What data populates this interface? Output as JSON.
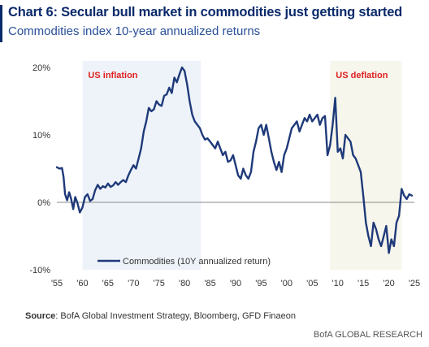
{
  "header": {
    "title": "Chart 6: Secular bull market in commodities just getting started",
    "subtitle": "Commodities index 10-year annualized returns"
  },
  "source": {
    "label": "Source",
    "text": ": BofA Global Investment Strategy, Bloomberg, GFD Finaeon"
  },
  "footer": {
    "text": "BofA GLOBAL RESEARCH"
  },
  "colors": {
    "line": "#1f3a7a",
    "shade_inflation": "#eef3fa",
    "shade_deflation": "#f6f6ec",
    "annotation": "#e02020",
    "title": "#0b2a6b",
    "zero_line": "#888888"
  },
  "chart_data": {
    "type": "line",
    "title": "",
    "xlabel": "",
    "ylabel": "",
    "xlim": [
      1955,
      2025
    ],
    "ylim": [
      -10,
      20
    ],
    "x_ticks": [
      1955,
      1960,
      1965,
      1970,
      1975,
      1980,
      1985,
      1990,
      1995,
      2000,
      2005,
      2010,
      2015,
      2020,
      2025
    ],
    "x_tick_labels": [
      "'55",
      "'60",
      "'65",
      "'70",
      "'75",
      "'80",
      "'85",
      "'90",
      "'95",
      "'00",
      "'05",
      "'10",
      "'15",
      "'20",
      "'25"
    ],
    "y_ticks": [
      -10,
      0,
      10,
      20
    ],
    "y_tick_labels": [
      "-10%",
      "0%",
      "10%",
      "20%"
    ],
    "grid": false,
    "legend_position": "bottom-left",
    "shaded_regions": [
      {
        "label": "US inflation",
        "start": 1960,
        "end": 1983.2
      },
      {
        "label": "US deflation",
        "start": 2008.5,
        "end": 2022.5
      }
    ],
    "series": [
      {
        "name": "Commodities (10Y annualized return)",
        "x": [
          1955,
          1955.5,
          1956,
          1956.3,
          1956.6,
          1957,
          1957.4,
          1957.8,
          1958.2,
          1958.6,
          1959,
          1959.5,
          1960,
          1960.5,
          1961,
          1961.5,
          1962,
          1962.5,
          1963,
          1963.5,
          1964,
          1964.5,
          1965,
          1965.5,
          1966,
          1966.5,
          1967,
          1967.5,
          1968,
          1968.5,
          1969,
          1969.5,
          1970,
          1970.5,
          1971,
          1971.5,
          1972,
          1972.5,
          1973,
          1973.5,
          1974,
          1974.5,
          1975,
          1975.5,
          1976,
          1976.5,
          1977,
          1977.5,
          1978,
          1978.5,
          1979,
          1979.5,
          1980,
          1980.5,
          1981,
          1981.5,
          1982,
          1982.5,
          1983,
          1983.5,
          1984,
          1984.5,
          1985,
          1985.5,
          1986,
          1986.5,
          1987,
          1987.5,
          1988,
          1988.5,
          1989,
          1989.5,
          1990,
          1990.5,
          1991,
          1991.5,
          1992,
          1992.5,
          1993,
          1993.5,
          1994,
          1994.5,
          1995,
          1995.5,
          1996,
          1996.5,
          1997,
          1997.5,
          1998,
          1998.5,
          1999,
          1999.5,
          2000,
          2000.5,
          2001,
          2001.5,
          2002,
          2002.5,
          2003,
          2003.5,
          2004,
          2004.5,
          2005,
          2005.5,
          2006,
          2006.5,
          2007,
          2007.5,
          2008,
          2008.5,
          2009,
          2009.5,
          2010,
          2010.5,
          2011,
          2011.5,
          2012,
          2012.5,
          2013,
          2013.5,
          2014,
          2014.5,
          2015,
          2015.5,
          2016,
          2016.5,
          2017,
          2017.5,
          2018,
          2018.5,
          2019,
          2019.5,
          2020,
          2020.5,
          2021,
          2021.5,
          2022,
          2022.5,
          2023,
          2023.5,
          2024,
          2024.5
        ],
        "values": [
          5.2,
          5.0,
          5.1,
          3.8,
          1.2,
          0.3,
          1.5,
          0.5,
          -1.0,
          0.8,
          0.0,
          -1.5,
          -0.8,
          0.8,
          1.2,
          0.2,
          0.5,
          1.8,
          2.6,
          2.0,
          2.4,
          2.2,
          2.8,
          2.3,
          2.5,
          3.0,
          2.6,
          3.0,
          3.3,
          3.0,
          4.0,
          4.8,
          5.5,
          5.0,
          6.5,
          8.0,
          10.5,
          12.0,
          14.0,
          13.5,
          13.8,
          15.0,
          14.5,
          14.3,
          15.8,
          16.0,
          17.0,
          16.2,
          18.5,
          17.8,
          19.0,
          20.0,
          19.5,
          17.5,
          15.0,
          13.0,
          12.0,
          11.5,
          11.0,
          10.0,
          9.3,
          9.5,
          9.0,
          8.5,
          8.0,
          9.0,
          8.0,
          7.0,
          7.5,
          6.0,
          6.2,
          7.0,
          5.5,
          4.0,
          3.5,
          5.0,
          4.0,
          3.5,
          4.5,
          7.5,
          9.0,
          11.0,
          11.5,
          10.0,
          11.5,
          9.5,
          7.5,
          6.0,
          4.8,
          6.0,
          4.5,
          7.0,
          8.0,
          9.5,
          11.0,
          11.5,
          12.0,
          10.5,
          11.5,
          12.5,
          12.0,
          13.0,
          12.0,
          12.5,
          13.0,
          11.5,
          12.5,
          12.8,
          7.0,
          8.5,
          11.5,
          15.5,
          7.5,
          8.0,
          6.5,
          10.0,
          9.5,
          9.0,
          7.0,
          6.5,
          5.5,
          4.5,
          1.0,
          -3.0,
          -5.0,
          -6.5,
          -3.0,
          -4.0,
          -5.5,
          -6.5,
          -5.0,
          -3.5,
          -7.5,
          -5.5,
          -6.5,
          -3.0,
          -2.0,
          2.0,
          1.0,
          0.5,
          1.2,
          1.0
        ]
      }
    ]
  }
}
